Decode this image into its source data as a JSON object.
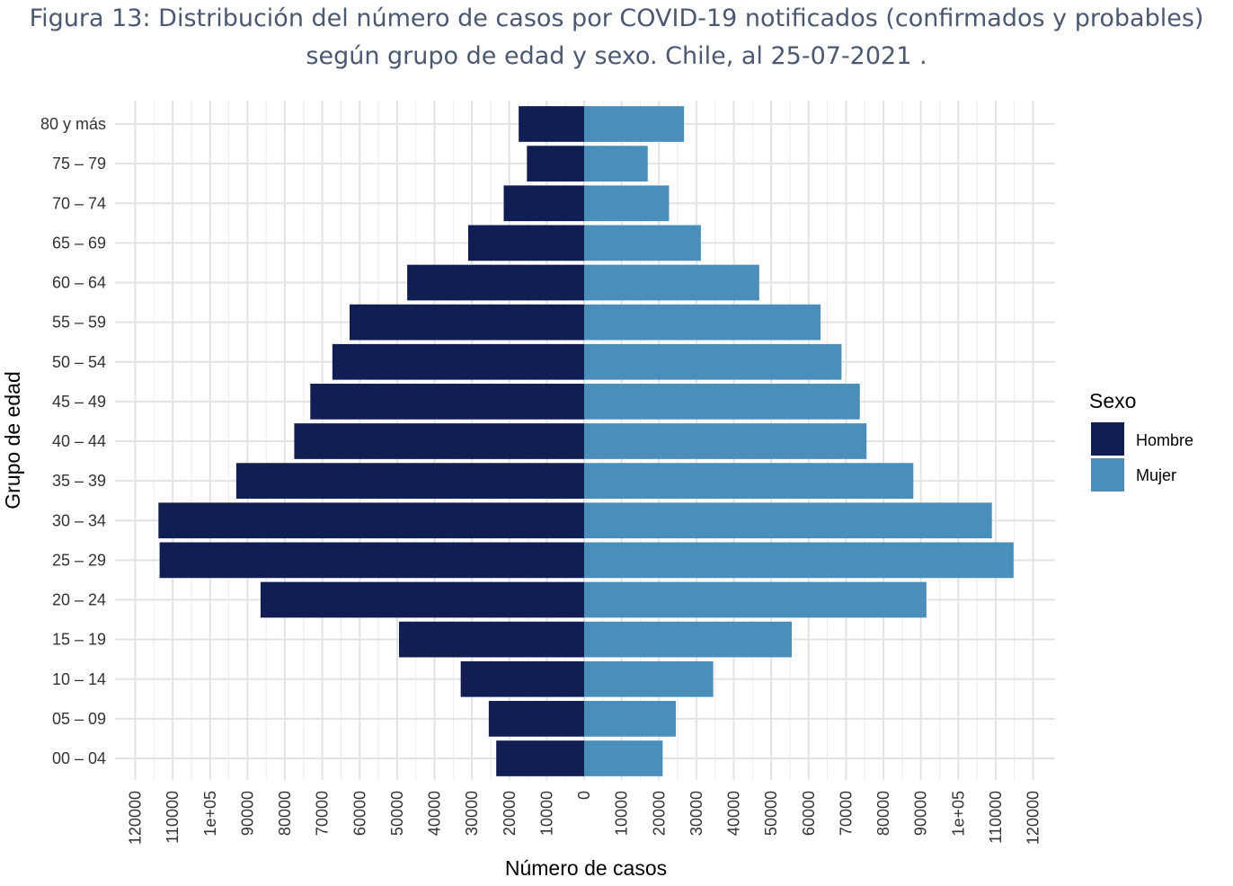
{
  "title": {
    "line1": "Figura 13: Distribución del número de casos por COVID-19 notificados (confirmados y probables)",
    "line2": "según grupo de edad y sexo. Chile, al 25-07-2021 ."
  },
  "chart_data": {
    "type": "bar",
    "orientation": "horizontal-population-pyramid",
    "categories": [
      "00 – 04",
      "05 – 09",
      "10 – 14",
      "15 – 19",
      "20 – 24",
      "25 – 29",
      "30 – 34",
      "35 – 39",
      "40 – 44",
      "45 – 49",
      "50 – 54",
      "55 – 59",
      "60 – 64",
      "65 – 69",
      "70 – 74",
      "75 – 79",
      "80 y más"
    ],
    "series": [
      {
        "name": "Hombre",
        "color": "#111e53",
        "side": "left",
        "values": [
          23500,
          25500,
          33000,
          49500,
          86500,
          113500,
          113800,
          93000,
          77500,
          73200,
          67300,
          62700,
          47300,
          31000,
          21500,
          15300,
          17500
        ]
      },
      {
        "name": "Mujer",
        "color": "#4a8ebc",
        "side": "right",
        "values": [
          21000,
          24500,
          34500,
          55500,
          91500,
          114800,
          109000,
          88000,
          75500,
          73700,
          68800,
          63200,
          46800,
          31200,
          22700,
          17000,
          26700
        ]
      }
    ],
    "xlabel": "Número de casos",
    "ylabel": "Grupo de edad",
    "xlim": [
      -120000,
      120000
    ],
    "x_tick_values": [
      -120000,
      -110000,
      -100000,
      -90000,
      -80000,
      -70000,
      -60000,
      -50000,
      -40000,
      -30000,
      -20000,
      -10000,
      0,
      10000,
      20000,
      30000,
      40000,
      50000,
      60000,
      70000,
      80000,
      90000,
      100000,
      110000,
      120000
    ],
    "x_tick_labels": [
      "120000",
      "110000",
      "1e+05",
      "90000",
      "80000",
      "70000",
      "60000",
      "50000",
      "40000",
      "30000",
      "20000",
      "10000",
      "0",
      "10000",
      "20000",
      "30000",
      "40000",
      "50000",
      "60000",
      "70000",
      "80000",
      "90000",
      "1e+05",
      "110000",
      "120000"
    ],
    "grid": true,
    "legend": {
      "title": "Sexo",
      "position": "right"
    }
  }
}
